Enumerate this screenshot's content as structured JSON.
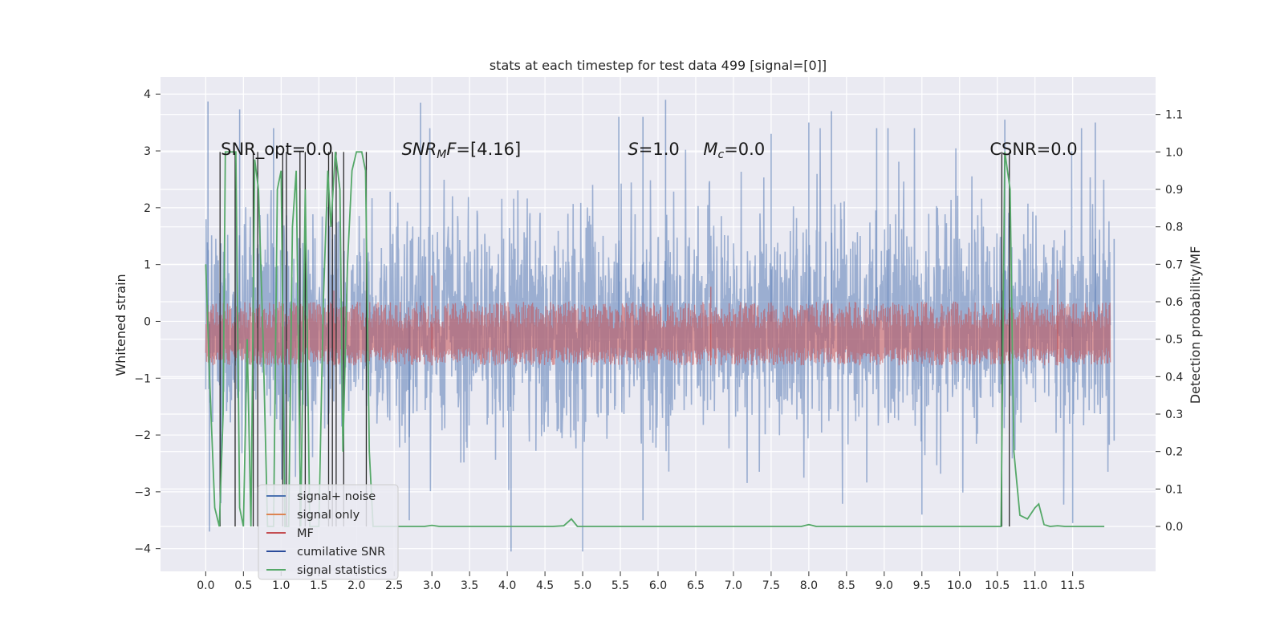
{
  "chart_data": {
    "type": "line",
    "title": "stats at each timestep for test data 499 [signal=[0]]",
    "ylabel": "Whitened strain",
    "y2label": "Detection probability/MF",
    "xlim": [
      -0.6,
      12.6
    ],
    "ylim": [
      -4.4,
      4.3
    ],
    "y2lim": [
      -0.12,
      1.2
    ],
    "x_ticks": [
      0.0,
      0.5,
      1.0,
      1.5,
      2.0,
      2.5,
      3.0,
      3.5,
      4.0,
      4.5,
      5.0,
      5.5,
      6.0,
      6.5,
      7.0,
      7.5,
      8.0,
      8.5,
      9.0,
      9.5,
      10.0,
      10.5,
      11.0,
      11.5
    ],
    "y_ticks": [
      -4,
      -3,
      -2,
      -1,
      0,
      1,
      2,
      3,
      4
    ],
    "y2_ticks": [
      0.0,
      0.1,
      0.2,
      0.3,
      0.4,
      0.5,
      0.6,
      0.7,
      0.8,
      0.9,
      1.0,
      1.1
    ],
    "grid": true,
    "legend_position": "lower-left",
    "legend": [
      {
        "label": "signal+ noise",
        "color": "#4c72b0"
      },
      {
        "label": "signal only",
        "color": "#dd8452"
      },
      {
        "label": "MF",
        "color": "#c44e52"
      },
      {
        "label": "cumilative SNR",
        "color": "#2b4c9b"
      },
      {
        "label": "signal statistics",
        "color": "#55a868"
      }
    ],
    "annotations": [
      {
        "x": 0.2,
        "y": 3.0,
        "text": "SNR_opt=0.0",
        "parts": [
          {
            "t": "SNR_opt=0.0"
          }
        ]
      },
      {
        "x": 2.6,
        "y": 3.0,
        "text": "SNR_MF=[4.16]",
        "parts": [
          {
            "t": "SNR",
            "i": true
          },
          {
            "t": "M",
            "i": true,
            "sub": true
          },
          {
            "t": "F",
            "i": true
          },
          {
            "t": "=[4.16]"
          }
        ]
      },
      {
        "x": 5.6,
        "y": 3.0,
        "text": "S=1.0",
        "parts": [
          {
            "t": "S",
            "i": true
          },
          {
            "t": "=1.0"
          }
        ]
      },
      {
        "x": 6.6,
        "y": 3.0,
        "text": "M_c=0.0",
        "parts": [
          {
            "t": "M",
            "i": true
          },
          {
            "t": "c",
            "i": true,
            "sub": true
          },
          {
            "t": "=0.0"
          }
        ]
      },
      {
        "x": 10.4,
        "y": 3.0,
        "text": "CSNR=0.0",
        "parts": [
          {
            "t": "CSNR=0.0"
          }
        ]
      }
    ],
    "series": [
      {
        "name": "signal+ noise",
        "axis": "left",
        "color": "#4c72b0",
        "x_range": [
          0.0,
          12.0
        ],
        "noise_std": 1.0,
        "peaks": [
          [
            0.03,
            3.87
          ],
          [
            0.05,
            -3.7
          ],
          [
            0.45,
            3.73
          ],
          [
            0.2,
            -3.2
          ],
          [
            0.9,
            3.4
          ],
          [
            1.05,
            -3.4
          ],
          [
            2.85,
            3.85
          ],
          [
            2.7,
            -3.5
          ],
          [
            4.05,
            -4.05
          ],
          [
            5.0,
            -4.05
          ],
          [
            5.48,
            3.6
          ],
          [
            5.8,
            3.6
          ],
          [
            6.1,
            3.9
          ],
          [
            5.8,
            -3.5
          ],
          [
            8.0,
            3.5
          ],
          [
            8.3,
            3.7
          ],
          [
            8.9,
            3.4
          ],
          [
            9.5,
            -3.4
          ],
          [
            10.6,
            3.55
          ],
          [
            11.5,
            -3.55
          ],
          [
            11.8,
            3.5
          ],
          [
            12.05,
            1.45
          ],
          [
            12.05,
            -2.1
          ],
          [
            9.05,
            3.4
          ],
          [
            7.5,
            3.3
          ]
        ]
      },
      {
        "name": "MF",
        "axis": "right",
        "color": "#c44e52",
        "x_range": [
          0.0,
          12.0
        ],
        "level": 0.55,
        "spread": 0.12,
        "peaks": [
          [
            3.0,
            0.67
          ],
          [
            1.7,
            0.63
          ],
          [
            6.7,
            0.64
          ],
          [
            11.3,
            0.66
          ]
        ]
      },
      {
        "name": "cumilative SNR",
        "axis": "left",
        "color": "#2b4c9b",
        "x_range": [
          0.0,
          12.0
        ],
        "values_note": ""
      },
      {
        "name": "signal statistics",
        "axis": "right",
        "color": "#55a868",
        "points": [
          [
            0.0,
            0.7
          ],
          [
            0.05,
            0.4
          ],
          [
            0.12,
            0.05
          ],
          [
            0.18,
            0.0
          ],
          [
            0.23,
            0.3
          ],
          [
            0.26,
            1.0
          ],
          [
            0.3,
            1.0
          ],
          [
            0.4,
            1.0
          ],
          [
            0.45,
            0.05
          ],
          [
            0.5,
            0.0
          ],
          [
            0.55,
            0.5
          ],
          [
            0.6,
            0.0
          ],
          [
            0.65,
            0.98
          ],
          [
            0.7,
            0.9
          ],
          [
            0.76,
            0.5
          ],
          [
            0.82,
            0.0
          ],
          [
            0.9,
            0.0
          ],
          [
            0.95,
            0.9
          ],
          [
            1.0,
            0.95
          ],
          [
            1.05,
            0.0
          ],
          [
            1.1,
            0.0
          ],
          [
            1.15,
            0.8
          ],
          [
            1.2,
            0.95
          ],
          [
            1.26,
            0.0
          ],
          [
            1.32,
            0.9
          ],
          [
            1.38,
            0.0
          ],
          [
            1.5,
            0.0
          ],
          [
            1.56,
            0.6
          ],
          [
            1.62,
            0.95
          ],
          [
            1.66,
            0.8
          ],
          [
            1.72,
            1.0
          ],
          [
            1.78,
            0.9
          ],
          [
            1.82,
            0.2
          ],
          [
            1.88,
            0.7
          ],
          [
            1.94,
            0.95
          ],
          [
            2.0,
            1.0
          ],
          [
            2.07,
            1.0
          ],
          [
            2.12,
            0.95
          ],
          [
            2.17,
            0.2
          ],
          [
            2.22,
            0.0
          ],
          [
            2.6,
            0.0
          ],
          [
            2.9,
            0.0
          ],
          [
            3.0,
            0.003
          ],
          [
            3.1,
            0.0
          ],
          [
            4.6,
            0.0
          ],
          [
            4.75,
            0.002
          ],
          [
            4.85,
            0.02
          ],
          [
            4.93,
            0.0
          ],
          [
            5.4,
            0.0
          ],
          [
            7.9,
            0.0
          ],
          [
            8.0,
            0.005
          ],
          [
            8.1,
            0.0
          ],
          [
            10.55,
            0.0
          ],
          [
            10.6,
            1.0
          ],
          [
            10.67,
            0.9
          ],
          [
            10.72,
            0.2
          ],
          [
            10.8,
            0.03
          ],
          [
            10.9,
            0.02
          ],
          [
            11.0,
            0.05
          ],
          [
            11.05,
            0.06
          ],
          [
            11.12,
            0.005
          ],
          [
            11.2,
            0.0
          ],
          [
            11.3,
            0.002
          ],
          [
            11.4,
            0.0
          ],
          [
            11.92,
            0.0
          ]
        ],
        "vertical_lines": [
          0.19,
          0.39,
          0.63,
          0.69,
          1.02,
          1.07,
          1.25,
          1.32,
          1.63,
          1.68,
          1.73,
          1.83,
          2.13,
          10.56,
          10.66
        ]
      }
    ]
  }
}
